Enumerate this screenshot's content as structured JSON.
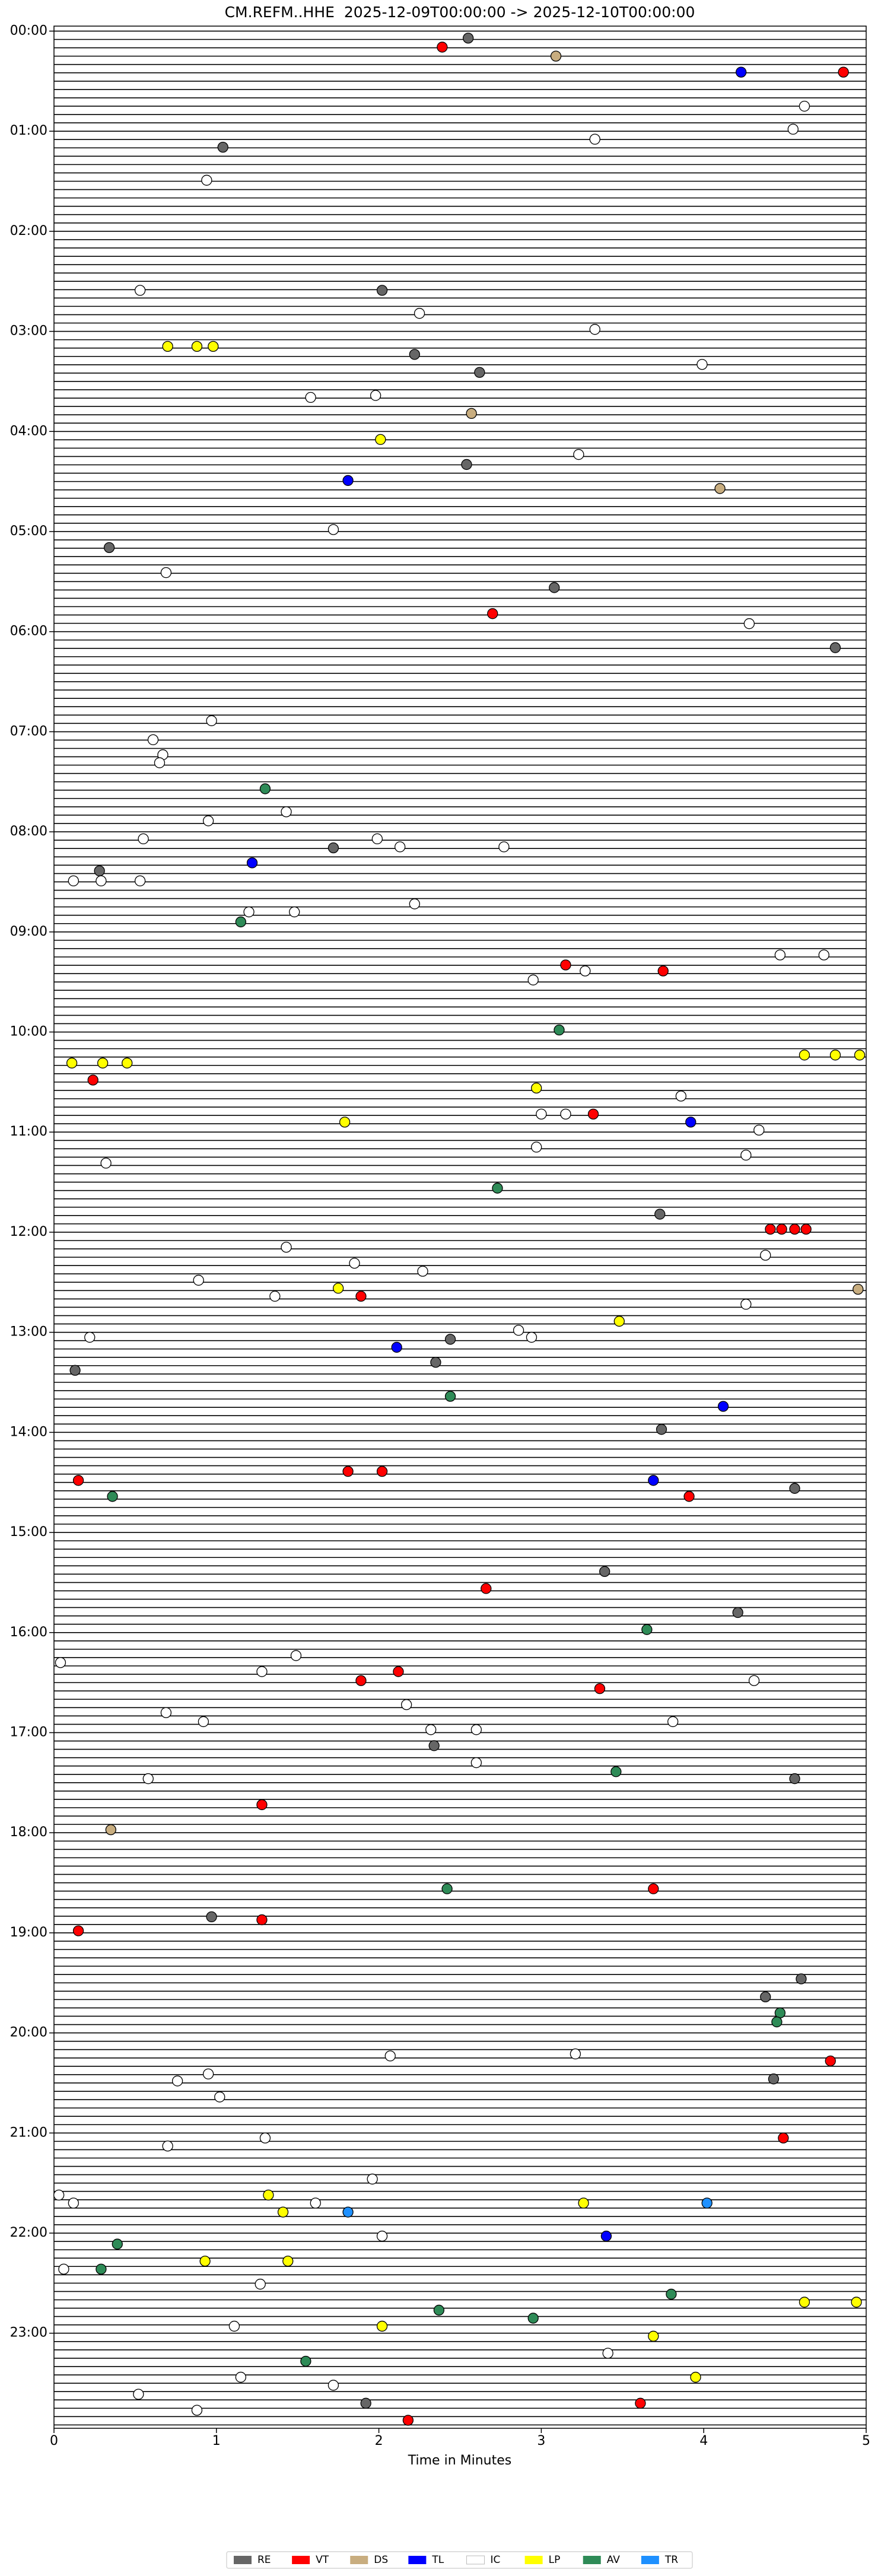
{
  "chart_data": {
    "type": "scatter",
    "title": "CM.REFM..HHE  2025-12-09T00:00:00 -> 2025-12-10T00:00:00",
    "x_label": "Time in Minutes",
    "xlim": [
      0,
      5
    ],
    "xticks": [
      0,
      1,
      2,
      3,
      4,
      5
    ],
    "ylim": [
      -0.05,
      23.95
    ],
    "yticks": [
      {
        "value": 0,
        "label": "00:00"
      },
      {
        "value": 1,
        "label": "01:00"
      },
      {
        "value": 2,
        "label": "02:00"
      },
      {
        "value": 3,
        "label": "03:00"
      },
      {
        "value": 4,
        "label": "04:00"
      },
      {
        "value": 5,
        "label": "05:00"
      },
      {
        "value": 6,
        "label": "06:00"
      },
      {
        "value": 7,
        "label": "07:00"
      },
      {
        "value": 8,
        "label": "08:00"
      },
      {
        "value": 9,
        "label": "09:00"
      },
      {
        "value": 10,
        "label": "10:00"
      },
      {
        "value": 11,
        "label": "11:00"
      },
      {
        "value": 12,
        "label": "12:00"
      },
      {
        "value": 13,
        "label": "13:00"
      },
      {
        "value": 14,
        "label": "14:00"
      },
      {
        "value": 15,
        "label": "15:00"
      },
      {
        "value": 16,
        "label": "16:00"
      },
      {
        "value": 17,
        "label": "17:00"
      },
      {
        "value": 18,
        "label": "18:00"
      },
      {
        "value": 19,
        "label": "19:00"
      },
      {
        "value": 20,
        "label": "20:00"
      },
      {
        "value": 21,
        "label": "21:00"
      },
      {
        "value": 22,
        "label": "22:00"
      },
      {
        "value": 23,
        "label": "23:00"
      }
    ],
    "y_inverted": true,
    "series": [
      {
        "name": "RE",
        "color": "#666666",
        "x": [
          2.55,
          1.04,
          2.02,
          2.22,
          2.62,
          2.54,
          0.34,
          3.08,
          4.81,
          1.72,
          0.28,
          3.73,
          2.44,
          2.35,
          0.13,
          3.74,
          4.56,
          3.39,
          4.21,
          2.34,
          4.56,
          0.97,
          4.6,
          4.38,
          4.43,
          1.92
        ],
        "values": [
          0.07,
          1.16,
          2.59,
          3.23,
          3.41,
          4.33,
          5.16,
          5.56,
          6.16,
          8.16,
          8.39,
          11.82,
          13.07,
          13.3,
          13.38,
          13.97,
          14.56,
          15.39,
          15.8,
          17.13,
          17.46,
          18.84,
          19.46,
          19.64,
          20.46,
          23.7
        ]
      },
      {
        "name": "VT",
        "color": "#ff0000",
        "x": [
          2.39,
          4.86,
          2.7,
          3.15,
          3.75,
          0.24,
          3.32,
          4.41,
          4.48,
          4.56,
          4.63,
          1.89,
          0.15,
          1.81,
          2.02,
          3.91,
          2.66,
          1.89,
          2.12,
          3.36,
          1.28,
          3.69,
          0.15,
          1.28,
          4.78,
          4.49,
          2.18,
          3.61
        ],
        "values": [
          0.16,
          0.41,
          5.82,
          9.33,
          9.39,
          10.48,
          10.82,
          11.97,
          11.97,
          11.97,
          11.97,
          12.64,
          14.48,
          14.39,
          14.39,
          14.64,
          15.56,
          16.48,
          16.39,
          16.56,
          17.72,
          18.56,
          18.98,
          18.87,
          20.28,
          21.05,
          23.87,
          23.7
        ]
      },
      {
        "name": "DS",
        "color": "#c8ad7f",
        "x": [
          3.09,
          2.57,
          4.1,
          4.95,
          0.35
        ],
        "values": [
          0.25,
          3.82,
          4.57,
          12.57,
          17.97
        ]
      },
      {
        "name": "TL",
        "color": "#0000ff",
        "x": [
          4.23,
          1.81,
          1.22,
          3.92,
          2.11,
          4.12,
          3.69,
          3.4
        ],
        "values": [
          0.41,
          4.49,
          8.31,
          10.9,
          13.15,
          13.74,
          14.48,
          22.03
        ]
      },
      {
        "name": "IC",
        "color": "#ffffff",
        "x": [
          4.62,
          4.55,
          3.33,
          0.94,
          0.53,
          2.25,
          3.33,
          3.99,
          1.98,
          1.58,
          3.23,
          1.72,
          0.69,
          4.28,
          0.97,
          0.61,
          0.67,
          0.65,
          1.43,
          0.95,
          0.55,
          1.99,
          2.13,
          2.77,
          0.12,
          0.29,
          0.53,
          2.22,
          1.48,
          1.2,
          4.47,
          4.74,
          3.27,
          2.95,
          3.86,
          3.0,
          3.15,
          4.34,
          2.97,
          0.32,
          4.26,
          1.43,
          1.85,
          2.27,
          4.38,
          0.89,
          1.36,
          4.26,
          2.86,
          2.94,
          0.22,
          0.04,
          1.28,
          1.49,
          4.31,
          0.69,
          0.92,
          2.17,
          3.81,
          2.32,
          2.6,
          2.6,
          0.58,
          2.07,
          3.21,
          0.95,
          0.76,
          1.02,
          0.7,
          1.3,
          0.03,
          0.12,
          1.61,
          1.96,
          2.02,
          0.06,
          1.27,
          1.11,
          3.41,
          1.15,
          0.52,
          0.88,
          1.72
        ],
        "values": [
          0.75,
          0.98,
          1.08,
          1.49,
          2.59,
          2.82,
          2.98,
          3.33,
          3.64,
          3.66,
          4.23,
          4.98,
          5.41,
          5.92,
          6.89,
          7.08,
          7.23,
          7.31,
          7.8,
          7.89,
          8.07,
          8.07,
          8.15,
          8.15,
          8.49,
          8.49,
          8.49,
          8.72,
          8.8,
          8.8,
          9.23,
          9.23,
          9.39,
          9.48,
          10.64,
          10.82,
          10.82,
          10.98,
          11.15,
          11.31,
          11.23,
          12.15,
          12.31,
          12.39,
          12.23,
          12.48,
          12.64,
          12.72,
          12.98,
          13.05,
          13.05,
          16.3,
          16.39,
          16.23,
          16.48,
          16.8,
          16.89,
          16.72,
          16.89,
          16.97,
          16.97,
          17.3,
          17.46,
          20.23,
          20.21,
          20.41,
          20.48,
          20.64,
          21.13,
          21.05,
          21.62,
          21.7,
          21.7,
          21.46,
          22.03,
          22.36,
          22.51,
          22.93,
          23.2,
          23.44,
          23.61,
          23.77,
          23.52
        ]
      },
      {
        "name": "LP",
        "color": "#ffff00",
        "x": [
          0.7,
          0.88,
          0.98,
          2.01,
          0.11,
          0.3,
          0.45,
          4.62,
          4.81,
          4.96,
          2.97,
          1.79,
          1.75,
          3.48,
          1.32,
          1.41,
          0.93,
          1.44,
          3.26,
          2.02,
          4.62,
          4.94,
          3.95,
          3.69
        ],
        "values": [
          3.15,
          3.15,
          3.15,
          4.08,
          10.31,
          10.31,
          10.31,
          10.23,
          10.23,
          10.23,
          10.56,
          10.9,
          12.56,
          12.89,
          21.62,
          21.79,
          22.28,
          22.28,
          21.7,
          22.93,
          22.69,
          22.69,
          23.44,
          23.03
        ]
      },
      {
        "name": "AV",
        "color": "#2e8b57",
        "x": [
          1.3,
          1.15,
          3.11,
          2.73,
          2.44,
          0.36,
          3.65,
          3.46,
          2.42,
          4.47,
          4.45,
          0.39,
          0.29,
          2.37,
          2.95,
          3.8,
          1.55
        ],
        "values": [
          7.57,
          8.9,
          9.98,
          11.56,
          13.64,
          14.64,
          15.97,
          17.39,
          18.56,
          19.8,
          19.89,
          22.11,
          22.36,
          22.77,
          22.85,
          22.61,
          23.28
        ]
      },
      {
        "name": "TR",
        "color": "#1e90ff",
        "x": [
          1.81,
          4.02
        ],
        "values": [
          21.79,
          21.7
        ]
      }
    ]
  }
}
